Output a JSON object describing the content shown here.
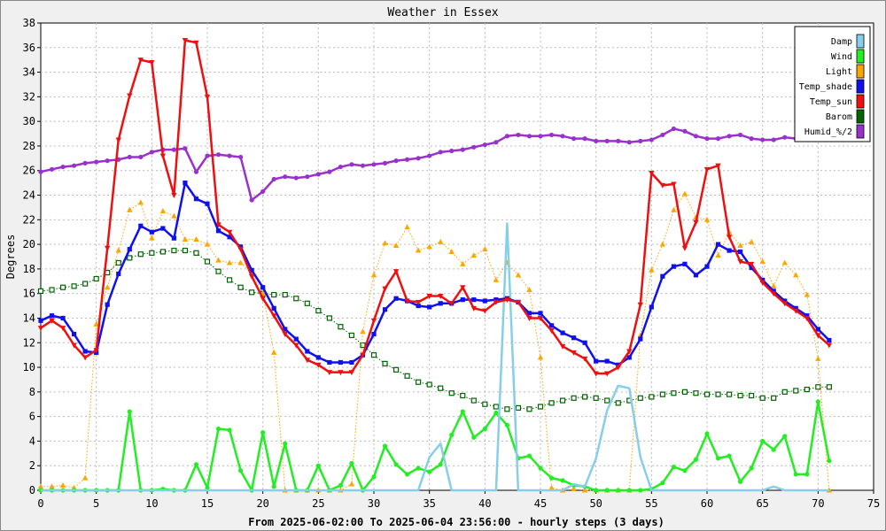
{
  "chart_data": {
    "type": "line",
    "title": "Weather in Essex",
    "xlabel": "From 2025-06-02:00 To 2025-06-04 23:56:00 - hourly steps (3 days)",
    "ylabel": "Degrees",
    "xlim": [
      0,
      75
    ],
    "ylim": [
      0,
      38
    ],
    "x_ticks": [
      0,
      5,
      10,
      15,
      20,
      25,
      30,
      35,
      40,
      45,
      50,
      55,
      60,
      65,
      70,
      75
    ],
    "y_ticks": [
      0,
      2,
      4,
      6,
      8,
      10,
      12,
      14,
      16,
      18,
      20,
      22,
      24,
      26,
      28,
      30,
      32,
      34,
      36,
      38
    ],
    "grid": true,
    "legend_position": "top-right",
    "series": [
      {
        "name": "Damp",
        "color": "#87ceeb",
        "marker": "none",
        "values": [
          0,
          0,
          0,
          0,
          0,
          0,
          0,
          0,
          0,
          0,
          0,
          0,
          0,
          0,
          0,
          0,
          0,
          0,
          0,
          0,
          0,
          0,
          0,
          0,
          0,
          0,
          0,
          0,
          0,
          0,
          0,
          0,
          0,
          0,
          0,
          2.7,
          3.8,
          0,
          0,
          0,
          0,
          0,
          21.7,
          0,
          0,
          0,
          0,
          0,
          0.5,
          0.3,
          2.6,
          6.5,
          8.5,
          8.3,
          2.7,
          0,
          0,
          0,
          0,
          0,
          0,
          0,
          0,
          0,
          0,
          0,
          0.3,
          0,
          0,
          0,
          0,
          0
        ]
      },
      {
        "name": "Wind",
        "color": "#22ee22",
        "marker": "circle",
        "values": [
          0,
          0,
          0,
          0,
          0,
          0,
          0,
          0,
          6.4,
          0,
          0,
          0.1,
          0,
          0,
          2.1,
          0.2,
          5,
          4.9,
          1.6,
          0,
          4.7,
          0.3,
          3.8,
          0,
          0,
          2,
          0,
          0.4,
          2.2,
          0,
          1.1,
          3.6,
          2.1,
          1.3,
          1.8,
          1.5,
          2.1,
          4.5,
          6.4,
          4.3,
          5,
          6.3,
          5.3,
          2.6,
          2.8,
          1.8,
          1,
          0.8,
          0.4,
          0.3,
          0,
          0,
          0,
          0,
          0,
          0.1,
          0.6,
          1.9,
          1.6,
          2.5,
          4.6,
          2.6,
          2.8,
          0.7,
          1.8,
          4,
          3.3,
          4.4,
          1.3,
          1.3,
          7.2,
          2.4
        ]
      },
      {
        "name": "Light",
        "color": "#ffa500",
        "marker": "triangle-up",
        "dotted": true,
        "values": [
          0.3,
          0.3,
          0.4,
          0.2,
          1,
          13.5,
          16.5,
          19.5,
          22.8,
          23.4,
          20.5,
          22.7,
          22.3,
          20.4,
          20.4,
          20,
          18.7,
          18.5,
          18.5,
          17.7,
          16,
          11.2,
          0,
          0,
          0,
          0,
          0,
          0,
          0.5,
          12.9,
          17.5,
          20.1,
          19.9,
          21.4,
          19.5,
          19.8,
          20.2,
          19.4,
          18.4,
          19.1,
          19.6,
          17.1,
          18.5,
          17.5,
          16.3,
          10.8,
          0.2,
          0,
          0.1,
          0,
          0,
          0,
          0,
          0,
          12.6,
          17.9,
          20,
          22.8,
          24.1,
          22.2,
          22,
          19.1,
          21,
          19.9,
          20.2,
          18.6,
          16.6,
          18.5,
          17.5,
          15.9,
          10.7,
          0
        ]
      },
      {
        "name": "Temp_shade",
        "color": "#1010ee",
        "marker": "square",
        "values": [
          13.8,
          14.2,
          14,
          12.7,
          11.3,
          11.2,
          15.1,
          17.6,
          19.6,
          21.5,
          21,
          21.3,
          20.5,
          25,
          23.7,
          23.3,
          21.1,
          20.6,
          19.8,
          17.9,
          16.5,
          14.8,
          13.1,
          12.3,
          11.3,
          10.8,
          10.4,
          10.4,
          10.4,
          11,
          12.7,
          14.7,
          15.6,
          15.4,
          15,
          14.9,
          15.2,
          15.2,
          15.5,
          15.5,
          15.4,
          15.5,
          15.6,
          15.3,
          14.4,
          14.4,
          13.4,
          12.8,
          12.4,
          12,
          10.5,
          10.5,
          10.2,
          10.8,
          12.3,
          14.9,
          17.4,
          18.2,
          18.4,
          17.5,
          18.2,
          20,
          19.5,
          19.4,
          18.1,
          17.1,
          16.2,
          15.4,
          14.8,
          14.2,
          13.1,
          12.2
        ]
      },
      {
        "name": "Temp_sun",
        "color": "#ee1010",
        "marker": "triangle-down",
        "values": [
          13.2,
          13.8,
          13.2,
          11.8,
          10.8,
          11.4,
          19.7,
          28.5,
          32.1,
          35,
          34.8,
          27.2,
          24,
          36.6,
          36.4,
          32,
          21.6,
          21,
          19.6,
          17.4,
          15.6,
          14.2,
          12.7,
          11.8,
          10.6,
          10.2,
          9.6,
          9.6,
          9.6,
          11,
          13.8,
          16.4,
          17.8,
          15.4,
          15.3,
          15.8,
          15.8,
          15.2,
          16.5,
          14.8,
          14.6,
          15.3,
          15.5,
          15.3,
          14,
          14,
          13,
          11.7,
          11.2,
          10.7,
          9.5,
          9.5,
          10,
          11.3,
          15.1,
          25.8,
          24.8,
          24.9,
          19.7,
          21.8,
          26.1,
          26.4,
          20.6,
          18.6,
          18.4,
          16.9,
          16,
          15.2,
          14.6,
          14,
          12.6,
          11.8
        ]
      },
      {
        "name": "Barom",
        "color": "#006400",
        "marker": "open-square",
        "dotted": true,
        "values": [
          16.2,
          16.3,
          16.5,
          16.6,
          16.8,
          17.2,
          17.7,
          18.5,
          18.9,
          19.2,
          19.3,
          19.4,
          19.5,
          19.5,
          19.3,
          18.6,
          17.8,
          17.1,
          16.5,
          16.1,
          16,
          15.9,
          15.9,
          15.6,
          15.2,
          14.6,
          14,
          13.3,
          12.6,
          11.8,
          11,
          10.3,
          9.8,
          9.3,
          8.8,
          8.6,
          8.3,
          7.9,
          7.7,
          7.3,
          7,
          6.8,
          6.6,
          6.7,
          6.6,
          6.8,
          7.1,
          7.3,
          7.5,
          7.6,
          7.5,
          7.3,
          7.1,
          7.3,
          7.5,
          7.6,
          7.8,
          7.9,
          8,
          7.9,
          7.8,
          7.8,
          7.8,
          7.7,
          7.7,
          7.5,
          7.5,
          8,
          8.1,
          8.2,
          8.4,
          8.4
        ]
      },
      {
        "name": "Humid_%/2",
        "color": "#9932cc",
        "marker": "circle",
        "values": [
          25.9,
          26.1,
          26.3,
          26.4,
          26.6,
          26.7,
          26.8,
          26.9,
          27.1,
          27.1,
          27.5,
          27.7,
          27.7,
          27.8,
          25.9,
          27.2,
          27.3,
          27.2,
          27.1,
          23.6,
          24.3,
          25.3,
          25.5,
          25.4,
          25.5,
          25.7,
          25.9,
          26.3,
          26.5,
          26.4,
          26.5,
          26.6,
          26.8,
          26.9,
          27,
          27.2,
          27.5,
          27.6,
          27.7,
          27.9,
          28.1,
          28.3,
          28.8,
          28.9,
          28.8,
          28.8,
          28.9,
          28.8,
          28.6,
          28.6,
          28.4,
          28.4,
          28.4,
          28.3,
          28.4,
          28.5,
          28.9,
          29.4,
          29.2,
          28.8,
          28.6,
          28.6,
          28.8,
          28.9,
          28.6,
          28.5,
          28.5,
          28.7,
          28.6,
          28.6,
          28.7,
          28.6
        ]
      }
    ]
  }
}
